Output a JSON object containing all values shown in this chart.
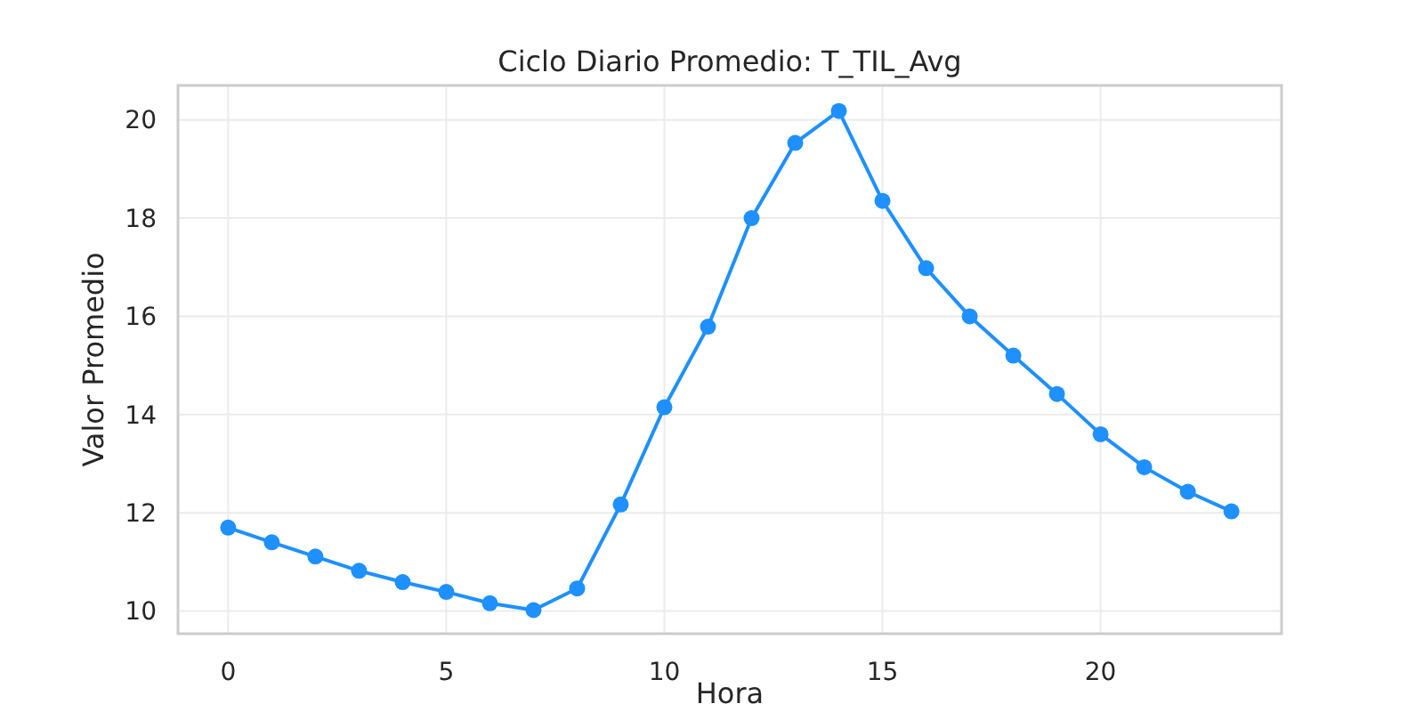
{
  "chart_data": {
    "type": "line",
    "title": "Ciclo Diario Promedio: T_TIL_Avg",
    "xlabel": "Hora",
    "ylabel": "Valor Promedio",
    "x": [
      0,
      1,
      2,
      3,
      4,
      5,
      6,
      7,
      8,
      9,
      10,
      11,
      12,
      13,
      14,
      15,
      16,
      17,
      18,
      19,
      20,
      21,
      22,
      23
    ],
    "series": [
      {
        "color": "#1e90ff",
        "values": [
          11.7,
          11.4,
          11.11,
          10.82,
          10.59,
          10.39,
          10.16,
          10.02,
          10.46,
          12.17,
          14.15,
          15.79,
          18.0,
          19.53,
          20.18,
          18.35,
          16.98,
          16.0,
          15.2,
          14.42,
          13.6,
          12.93,
          12.43,
          12.03
        ]
      }
    ],
    "xlim": [
      -1.15,
      24.15
    ],
    "ylim": [
      9.54,
      20.7
    ],
    "xticks": [
      0,
      5,
      10,
      15,
      20
    ],
    "yticks": [
      10,
      12,
      14,
      16,
      18,
      20
    ],
    "grid": true,
    "marker": "circle",
    "line_style": "solid"
  }
}
